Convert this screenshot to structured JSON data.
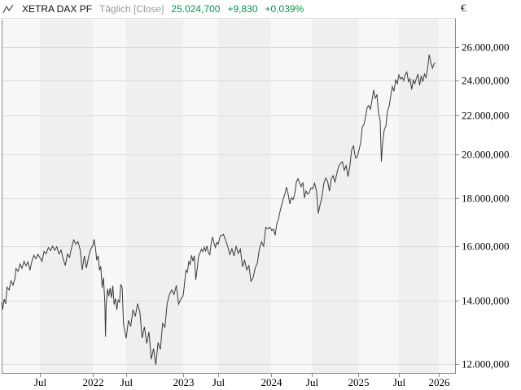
{
  "header": {
    "instrument": "XETRA DAX PF",
    "period": "Täglich [Close]",
    "last": "25.024,700",
    "change_abs": "+9,830",
    "change_pct": "+0,039%",
    "currency": "€"
  },
  "chart_data": {
    "type": "line",
    "title": "XETRA DAX PF",
    "subtitle": "Täglich [Close]",
    "y_scale": "log",
    "grid": true,
    "legend": "none",
    "xlim": [
      2021.1,
      2026.25
    ],
    "ylim": [
      11750,
      27800
    ],
    "colors": {
      "line": "#3a3a3a",
      "value_text": "#009946",
      "band_light": "#f7f7f7",
      "band_dark": "#efefef",
      "grid": "#dcdcdc",
      "border": "#888888",
      "tick_text": "#000000"
    },
    "y_ticks": [
      {
        "v": 26000,
        "label": "26.000,000"
      },
      {
        "v": 24000,
        "label": "24.000,000"
      },
      {
        "v": 22000,
        "label": "22.000,000"
      },
      {
        "v": 20000,
        "label": "20.000,000"
      },
      {
        "v": 18000,
        "label": "18.000,000"
      },
      {
        "v": 16000,
        "label": "16.000,000"
      },
      {
        "v": 14000,
        "label": "14.000,000"
      },
      {
        "v": 12000,
        "label": "12.000,000"
      }
    ],
    "x_ticks": [
      {
        "t": 2021.5,
        "label": "Jul"
      },
      {
        "t": 2022.0,
        "label": "2022"
      },
      {
        "t": 2022.5,
        "label": "Jul"
      },
      {
        "t": 2023.0,
        "label": "2023"
      },
      {
        "t": 2023.5,
        "label": "Jul"
      },
      {
        "t": 2024.0,
        "label": "2024"
      },
      {
        "t": 2024.5,
        "label": "Jul"
      },
      {
        "t": 2025.0,
        "label": "2025"
      },
      {
        "t": 2025.5,
        "label": "Jul"
      },
      {
        "t": 2026.0,
        "label": "2026"
      }
    ],
    "series": [
      {
        "name": "XETRA DAX PF Close",
        "points": [
          [
            2021.115,
            13950
          ],
          [
            2021.125,
            13720
          ],
          [
            2021.14,
            14060
          ],
          [
            2021.155,
            13900
          ],
          [
            2021.17,
            14480
          ],
          [
            2021.19,
            14380
          ],
          [
            2021.21,
            14700
          ],
          [
            2021.23,
            14550
          ],
          [
            2021.25,
            14810
          ],
          [
            2021.26,
            15150
          ],
          [
            2021.28,
            15050
          ],
          [
            2021.3,
            15320
          ],
          [
            2021.32,
            15160
          ],
          [
            2021.34,
            15420
          ],
          [
            2021.36,
            15250
          ],
          [
            2021.38,
            15400
          ],
          [
            2021.4,
            15090
          ],
          [
            2021.42,
            15430
          ],
          [
            2021.44,
            15650
          ],
          [
            2021.46,
            15520
          ],
          [
            2021.48,
            15690
          ],
          [
            2021.5,
            15560
          ],
          [
            2021.52,
            15420
          ],
          [
            2021.54,
            15800
          ],
          [
            2021.56,
            15710
          ],
          [
            2021.58,
            15950
          ],
          [
            2021.6,
            15830
          ],
          [
            2021.62,
            16000
          ],
          [
            2021.64,
            15840
          ],
          [
            2021.66,
            15980
          ],
          [
            2021.68,
            15700
          ],
          [
            2021.7,
            15850
          ],
          [
            2021.72,
            15500
          ],
          [
            2021.74,
            15260
          ],
          [
            2021.76,
            15700
          ],
          [
            2021.78,
            15570
          ],
          [
            2021.8,
            15950
          ],
          [
            2021.82,
            16250
          ],
          [
            2021.84,
            16080
          ],
          [
            2021.86,
            16180
          ],
          [
            2021.88,
            15870
          ],
          [
            2021.9,
            15100
          ],
          [
            2021.92,
            15620
          ],
          [
            2021.94,
            15170
          ],
          [
            2021.96,
            15590
          ],
          [
            2021.98,
            15884
          ],
          [
            2022.0,
            16020
          ],
          [
            2022.02,
            16270
          ],
          [
            2022.04,
            15920
          ],
          [
            2022.06,
            15460
          ],
          [
            2022.08,
            15630
          ],
          [
            2022.1,
            15090
          ],
          [
            2022.12,
            15240
          ],
          [
            2022.14,
            14460
          ],
          [
            2022.16,
            14820
          ],
          [
            2022.18,
            13950
          ],
          [
            2022.19,
            12830
          ],
          [
            2022.2,
            13850
          ],
          [
            2022.22,
            14420
          ],
          [
            2022.24,
            14160
          ],
          [
            2022.26,
            14450
          ],
          [
            2022.28,
            14100
          ],
          [
            2022.3,
            14530
          ],
          [
            2022.32,
            13880
          ],
          [
            2022.34,
            14080
          ],
          [
            2022.36,
            13700
          ],
          [
            2022.38,
            14030
          ],
          [
            2022.4,
            13960
          ],
          [
            2022.42,
            14580
          ],
          [
            2022.44,
            14460
          ],
          [
            2022.46,
            13230
          ],
          [
            2022.48,
            13020
          ],
          [
            2022.5,
            12780
          ],
          [
            2022.52,
            13350
          ],
          [
            2022.54,
            13160
          ],
          [
            2022.56,
            13700
          ],
          [
            2022.58,
            13480
          ],
          [
            2022.6,
            13910
          ],
          [
            2022.62,
            13630
          ],
          [
            2022.64,
            12790
          ],
          [
            2022.66,
            13140
          ],
          [
            2022.68,
            12620
          ],
          [
            2022.7,
            12980
          ],
          [
            2022.72,
            12140
          ],
          [
            2022.74,
            12460
          ],
          [
            2022.76,
            11980
          ],
          [
            2022.78,
            12650
          ],
          [
            2022.8,
            12440
          ],
          [
            2022.82,
            13250
          ],
          [
            2022.84,
            13130
          ],
          [
            2022.86,
            13920
          ],
          [
            2022.88,
            14230
          ],
          [
            2022.9,
            14380
          ],
          [
            2022.92,
            14220
          ],
          [
            2022.94,
            14540
          ],
          [
            2022.96,
            13890
          ],
          [
            2022.98,
            14070
          ],
          [
            2023.0,
            14180
          ],
          [
            2023.02,
            14610
          ],
          [
            2023.04,
            15090
          ],
          [
            2023.06,
            15010
          ],
          [
            2023.08,
            15410
          ],
          [
            2023.1,
            15300
          ],
          [
            2023.12,
            15650
          ],
          [
            2023.14,
            15430
          ],
          [
            2023.16,
            15630
          ],
          [
            2023.18,
            14740
          ],
          [
            2023.2,
            15120
          ],
          [
            2023.22,
            15600
          ],
          [
            2023.24,
            15730
          ],
          [
            2023.26,
            15880
          ],
          [
            2023.28,
            15790
          ],
          [
            2023.3,
            15960
          ],
          [
            2023.32,
            15810
          ],
          [
            2023.34,
            16010
          ],
          [
            2023.36,
            15750
          ],
          [
            2023.38,
            15670
          ],
          [
            2023.4,
            16110
          ],
          [
            2023.42,
            16360
          ],
          [
            2023.44,
            16140
          ],
          [
            2023.46,
            15950
          ],
          [
            2023.48,
            16150
          ],
          [
            2023.5,
            16080
          ],
          [
            2023.52,
            16400
          ],
          [
            2023.55,
            16470
          ],
          [
            2023.57,
            16240
          ],
          [
            2023.59,
            15990
          ],
          [
            2023.61,
            15680
          ],
          [
            2023.63,
            15900
          ],
          [
            2023.65,
            15620
          ],
          [
            2023.67,
            15990
          ],
          [
            2023.69,
            15720
          ],
          [
            2023.71,
            15890
          ],
          [
            2023.73,
            15220
          ],
          [
            2023.75,
            15460
          ],
          [
            2023.77,
            15100
          ],
          [
            2023.79,
            15260
          ],
          [
            2023.81,
            14690
          ],
          [
            2023.83,
            14820
          ],
          [
            2023.85,
            15180
          ],
          [
            2023.87,
            15350
          ],
          [
            2023.89,
            15900
          ],
          [
            2023.91,
            16170
          ],
          [
            2023.93,
            16000
          ],
          [
            2023.95,
            16750
          ],
          [
            2023.97,
            16690
          ],
          [
            2023.99,
            16752
          ],
          [
            2024.01,
            16620
          ],
          [
            2024.03,
            16680
          ],
          [
            2024.05,
            16430
          ],
          [
            2024.07,
            16900
          ],
          [
            2024.09,
            17090
          ],
          [
            2024.11,
            17420
          ],
          [
            2024.13,
            17700
          ],
          [
            2024.15,
            17960
          ],
          [
            2024.17,
            18180
          ],
          [
            2024.19,
            18480
          ],
          [
            2024.21,
            18160
          ],
          [
            2024.23,
            17740
          ],
          [
            2024.25,
            18010
          ],
          [
            2024.27,
            17930
          ],
          [
            2024.29,
            18160
          ],
          [
            2024.31,
            18700
          ],
          [
            2024.33,
            18870
          ],
          [
            2024.35,
            18680
          ],
          [
            2024.37,
            18500
          ],
          [
            2024.39,
            18690
          ],
          [
            2024.41,
            18000
          ],
          [
            2024.43,
            18310
          ],
          [
            2024.45,
            18160
          ],
          [
            2024.47,
            18240
          ],
          [
            2024.49,
            18450
          ],
          [
            2024.51,
            18400
          ],
          [
            2024.53,
            18660
          ],
          [
            2024.55,
            18320
          ],
          [
            2024.57,
            17340
          ],
          [
            2024.59,
            17720
          ],
          [
            2024.61,
            18030
          ],
          [
            2024.63,
            18650
          ],
          [
            2024.65,
            18900
          ],
          [
            2024.67,
            18750
          ],
          [
            2024.69,
            18300
          ],
          [
            2024.71,
            18850
          ],
          [
            2024.73,
            19000
          ],
          [
            2024.75,
            18720
          ],
          [
            2024.77,
            19110
          ],
          [
            2024.79,
            19450
          ],
          [
            2024.81,
            19580
          ],
          [
            2024.83,
            19660
          ],
          [
            2024.85,
            19260
          ],
          [
            2024.87,
            19480
          ],
          [
            2024.89,
            18960
          ],
          [
            2024.91,
            19430
          ],
          [
            2024.93,
            20250
          ],
          [
            2024.95,
            20430
          ],
          [
            2024.97,
            19850
          ],
          [
            2024.99,
            19909
          ],
          [
            2025.01,
            20220
          ],
          [
            2025.03,
            20600
          ],
          [
            2025.05,
            21400
          ],
          [
            2025.07,
            21520
          ],
          [
            2025.09,
            21910
          ],
          [
            2025.11,
            22430
          ],
          [
            2025.13,
            22550
          ],
          [
            2025.15,
            22350
          ],
          [
            2025.17,
            22850
          ],
          [
            2025.19,
            23420
          ],
          [
            2025.21,
            22960
          ],
          [
            2025.23,
            23150
          ],
          [
            2025.25,
            22160
          ],
          [
            2025.27,
            21720
          ],
          [
            2025.285,
            19670
          ],
          [
            2025.3,
            20560
          ],
          [
            2025.32,
            21250
          ],
          [
            2025.34,
            21450
          ],
          [
            2025.36,
            22250
          ],
          [
            2025.38,
            22500
          ],
          [
            2025.4,
            23100
          ],
          [
            2025.42,
            23620
          ],
          [
            2025.44,
            23350
          ],
          [
            2025.46,
            24040
          ],
          [
            2025.48,
            23780
          ],
          [
            2025.5,
            24300
          ],
          [
            2025.52,
            24060
          ],
          [
            2025.54,
            24160
          ],
          [
            2025.56,
            23960
          ],
          [
            2025.58,
            24310
          ],
          [
            2025.6,
            24470
          ],
          [
            2025.62,
            23900
          ],
          [
            2025.64,
            24070
          ],
          [
            2025.66,
            23450
          ],
          [
            2025.68,
            24000
          ],
          [
            2025.7,
            23780
          ],
          [
            2025.72,
            24130
          ],
          [
            2025.74,
            24330
          ],
          [
            2025.76,
            23700
          ],
          [
            2025.78,
            24250
          ],
          [
            2025.8,
            23900
          ],
          [
            2025.82,
            24350
          ],
          [
            2025.84,
            24150
          ],
          [
            2025.86,
            24700
          ],
          [
            2025.88,
            25530
          ],
          [
            2025.9,
            25050
          ],
          [
            2025.92,
            24700
          ],
          [
            2025.94,
            24950
          ],
          [
            2025.955,
            25024.7
          ]
        ]
      }
    ]
  }
}
